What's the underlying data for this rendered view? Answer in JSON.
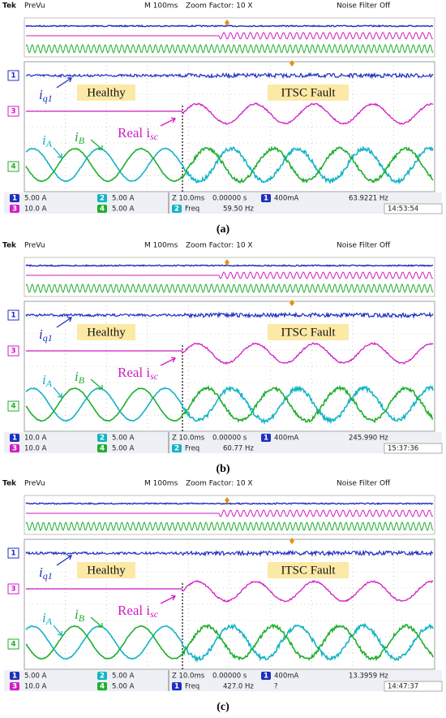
{
  "panels": [
    {
      "header": {
        "brand": "Tek",
        "mode": "PreVu",
        "timebase": "M 100ms",
        "zoom": "Zoom Factor: 10 X",
        "filter": "Noise Filter Off"
      },
      "markers": {
        "ch1": "1",
        "ch2": "2",
        "ch3": "3",
        "ch4": "4"
      },
      "labels": {
        "iq": "i",
        "iq_sub": "q1",
        "healthy": "Healthy",
        "fault": "ITSC Fault",
        "ia": "i",
        "ia_sub": "A",
        "ib": "i",
        "ib_sub": "B",
        "real": "Real i",
        "real_sub": "sc"
      },
      "info": {
        "ch1": "5.00 A",
        "ch2": "5.00 A",
        "ch3": "10.0 A",
        "ch4": "5.00 A",
        "zoom_time": "Z 10.0ms",
        "offset": "0.00000 s",
        "trig_ch": "1",
        "trigger": "400mA",
        "trig_freq": "63.9221 Hz",
        "freq_ch": "2",
        "freq_label": "Freq",
        "freq_value": "59.50 Hz",
        "time": "14:53:54"
      },
      "caption": "(a)"
    },
    {
      "header": {
        "brand": "Tek",
        "mode": "PreVu",
        "timebase": "M 100ms",
        "zoom": "Zoom Factor: 10 X",
        "filter": "Noise Filter Off"
      },
      "markers": {
        "ch1": "1",
        "ch2": "2",
        "ch3": "3",
        "ch4": "4"
      },
      "labels": {
        "iq": "i",
        "iq_sub": "q1",
        "healthy": "Healthy",
        "fault": "ITSC Fault",
        "ia": "i",
        "ia_sub": "A",
        "ib": "i",
        "ib_sub": "B",
        "real": "Real i",
        "real_sub": "sc"
      },
      "info": {
        "ch1": "10.0 A",
        "ch2": "5.00 A",
        "ch3": "10.0 A",
        "ch4": "5.00 A",
        "zoom_time": "Z 10.0ms",
        "offset": "0.00000 s",
        "trig_ch": "1",
        "trigger": "400mA",
        "trig_freq": "245.990 Hz",
        "freq_ch": "2",
        "freq_label": "Freq",
        "freq_value": "60.77 Hz",
        "time": "15:37:36"
      },
      "caption": "(b)"
    },
    {
      "header": {
        "brand": "Tek",
        "mode": "PreVu",
        "timebase": "M 100ms",
        "zoom": "Zoom Factor: 10 X",
        "filter": "Noise Filter Off"
      },
      "markers": {
        "ch1": "1",
        "ch2": "2",
        "ch3": "3",
        "ch4": "4"
      },
      "labels": {
        "iq": "i",
        "iq_sub": "q1",
        "healthy": "Healthy",
        "fault": "ITSC Fault",
        "ia": "i",
        "ia_sub": "A",
        "ib": "i",
        "ib_sub": "B",
        "real": "Real i",
        "real_sub": "sc"
      },
      "info": {
        "ch1": "5.00 A",
        "ch2": "5.00 A",
        "ch3": "10.0 A",
        "ch4": "5.00 A",
        "zoom_time": "Z 10.0ms",
        "offset": "0.00000 s",
        "trig_ch": "1",
        "trigger": "400mA",
        "trig_freq": "13.3959 Hz",
        "freq_ch": "1",
        "freq_label": "Freq",
        "freq_value": "427.0 Hz",
        "freq_note": "?",
        "time": "14:47:37"
      },
      "caption": "(c)"
    }
  ]
}
